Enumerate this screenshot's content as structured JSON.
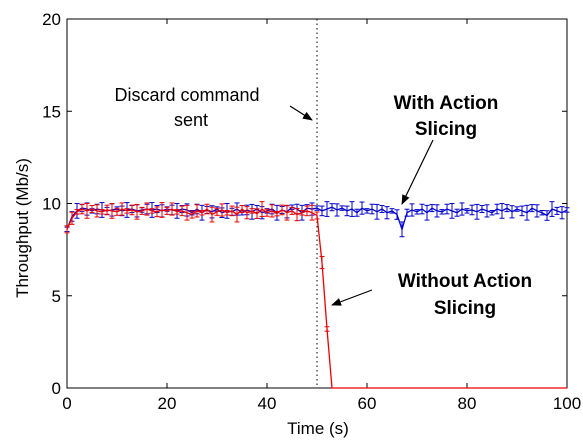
{
  "chart_data": {
    "type": "line",
    "title": "",
    "xlabel": "Time (s)",
    "ylabel": "Throughput (Mb/s)",
    "xlim": [
      0,
      100
    ],
    "ylim": [
      0,
      20
    ],
    "xticks": [
      "0",
      "20",
      "40",
      "60",
      "80",
      "100"
    ],
    "yticks": [
      "0",
      "5",
      "10",
      "15",
      "20"
    ],
    "grid": false,
    "legend": "none",
    "vline": {
      "x": 50,
      "style": "dotted"
    },
    "series": [
      {
        "color": "#0000cc",
        "x": [
          0,
          1,
          2,
          3,
          4,
          5,
          6,
          7,
          8,
          9,
          10,
          11,
          12,
          13,
          14,
          15,
          16,
          17,
          18,
          19,
          20,
          21,
          22,
          23,
          24,
          25,
          26,
          27,
          28,
          29,
          30,
          31,
          32,
          33,
          34,
          35,
          36,
          37,
          38,
          39,
          40,
          41,
          42,
          43,
          44,
          45,
          46,
          47,
          48,
          49,
          50,
          51,
          52,
          53,
          54,
          55,
          56,
          57,
          58,
          59,
          60,
          61,
          62,
          63,
          64,
          65,
          66,
          67,
          68,
          69,
          70,
          71,
          72,
          73,
          74,
          75,
          76,
          77,
          78,
          79,
          80,
          81,
          82,
          83,
          84,
          85,
          86,
          87,
          88,
          89,
          90,
          91,
          92,
          93,
          94,
          95,
          96,
          97,
          98,
          99,
          100
        ],
        "y": [
          8.6,
          9.3,
          9.6,
          9.75,
          9.7,
          9.6,
          9.7,
          9.65,
          9.6,
          9.65,
          9.7,
          9.6,
          9.65,
          9.7,
          9.6,
          9.65,
          9.7,
          9.65,
          9.7,
          9.6,
          9.7,
          9.65,
          9.6,
          9.7,
          9.65,
          9.5,
          9.7,
          9.5,
          9.65,
          9.55,
          9.7,
          9.5,
          9.6,
          9.55,
          9.7,
          9.5,
          9.65,
          9.55,
          9.7,
          9.5,
          9.6,
          9.7,
          9.5,
          9.65,
          9.55,
          9.8,
          9.7,
          9.5,
          9.75,
          9.7,
          9.75,
          9.6,
          9.7,
          9.8,
          9.65,
          9.75,
          9.6,
          9.7,
          9.5,
          9.75,
          9.6,
          9.7,
          9.55,
          9.7,
          9.5,
          9.6,
          9.4,
          8.6,
          9.5,
          9.65,
          9.55,
          9.7,
          9.5,
          9.75,
          9.6,
          9.55,
          9.7,
          9.6,
          9.5,
          9.7,
          9.6,
          9.65,
          9.55,
          9.7,
          9.6,
          9.5,
          9.7,
          9.6,
          9.75,
          9.55,
          9.7,
          9.6,
          9.5,
          9.75,
          9.6,
          9.5,
          9.35,
          9.7,
          9.6,
          9.5,
          9.65
        ]
      },
      {
        "color": "#ee0000",
        "x": [
          0,
          1,
          2,
          3,
          4,
          5,
          6,
          7,
          8,
          9,
          10,
          11,
          12,
          13,
          14,
          15,
          16,
          17,
          18,
          19,
          20,
          21,
          22,
          23,
          24,
          25,
          26,
          27,
          28,
          29,
          30,
          31,
          32,
          33,
          34,
          35,
          36,
          37,
          38,
          39,
          40,
          41,
          42,
          43,
          44,
          45,
          46,
          47,
          48,
          49,
          50,
          51,
          52,
          53,
          55,
          60,
          70,
          80,
          90,
          100
        ],
        "y": [
          8.6,
          9.2,
          9.55,
          9.7,
          9.6,
          9.7,
          9.6,
          9.55,
          9.65,
          9.6,
          9.55,
          9.7,
          9.6,
          9.65,
          9.55,
          9.6,
          9.7,
          9.6,
          9.55,
          9.65,
          9.6,
          9.7,
          9.55,
          9.6,
          9.5,
          9.4,
          9.6,
          9.5,
          9.7,
          9.4,
          9.55,
          9.65,
          9.5,
          9.6,
          9.4,
          9.7,
          9.5,
          9.6,
          9.45,
          9.7,
          9.5,
          9.6,
          9.45,
          9.65,
          9.5,
          9.6,
          9.4,
          9.5,
          9.6,
          9.5,
          9.35,
          6.8,
          3.2,
          0,
          0,
          0,
          0,
          0,
          0,
          0
        ]
      }
    ],
    "annotations": {
      "discard_line1": "Discard command",
      "discard_line2": "sent",
      "with_line1": "With Action",
      "with_line2": "Slicing",
      "without_line1": "Without Action",
      "without_line2": "Slicing"
    }
  }
}
